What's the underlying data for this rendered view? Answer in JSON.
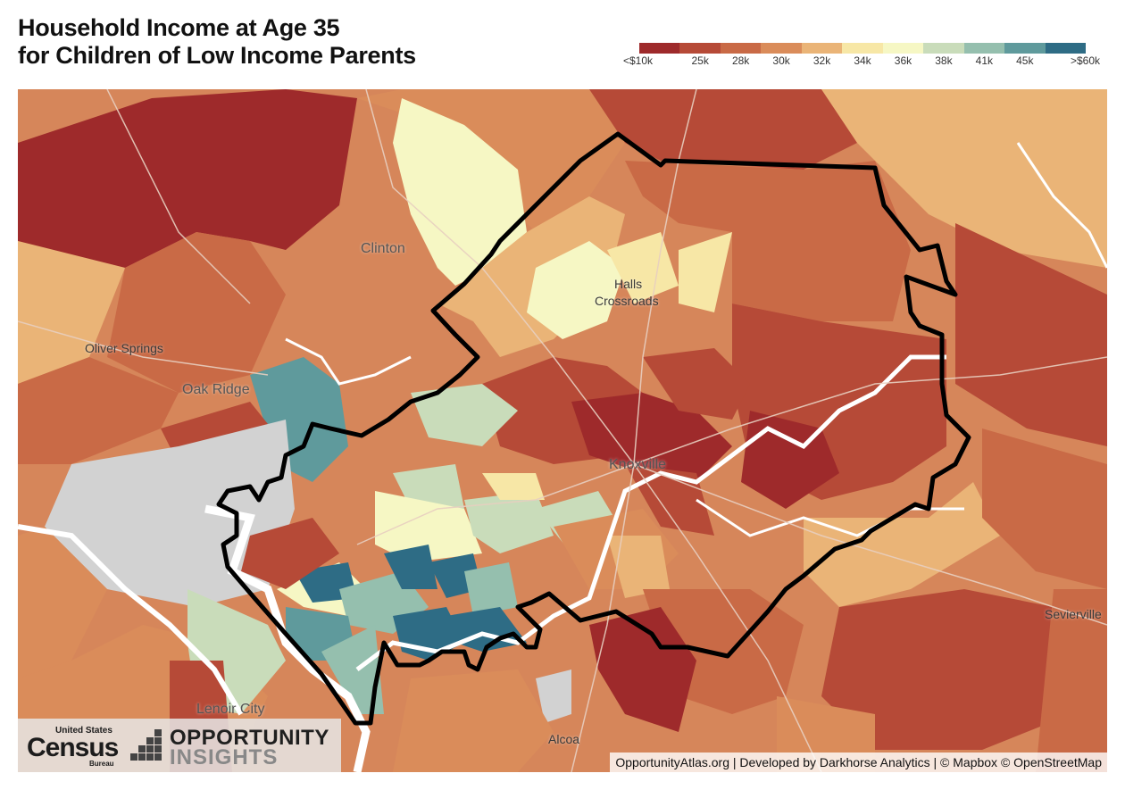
{
  "title": {
    "line1": "Household Income at Age 35",
    "line2": "for Children of Low Income Parents"
  },
  "legend": {
    "colors": [
      "#9e2a2b",
      "#b64a37",
      "#c96a46",
      "#da8c5a",
      "#eab477",
      "#f7e7a6",
      "#f6f7c4",
      "#c9dcba",
      "#95bfae",
      "#5f9a9c",
      "#2e6c85"
    ],
    "ticks": [
      "<$10k",
      "25k",
      "28k",
      "30k",
      "32k",
      "34k",
      "36k",
      "38k",
      "41k",
      "45k",
      ">$60k"
    ]
  },
  "map": {
    "places": {
      "clinton": "Clinton",
      "oliver_springs": "Oliver Springs",
      "oak_ridge": "Oak Ridge",
      "halls_line1": "Halls",
      "halls_line2": "Crossroads",
      "knoxville": "Knoxville",
      "lenoir_city": "Lenoir City",
      "alcoa": "Alcoa",
      "sevierville": "Sevierville"
    },
    "attribution": "OpportunityAtlas.org | Developed by Darkhorse Analytics | © Mapbox © OpenStreetMap"
  },
  "logos": {
    "census_top": "United States",
    "census_word": "Census",
    "census_bureau": "Bureau",
    "oi_line1": "OPPORTUNITY",
    "oi_line2": "INSIGHTS"
  }
}
